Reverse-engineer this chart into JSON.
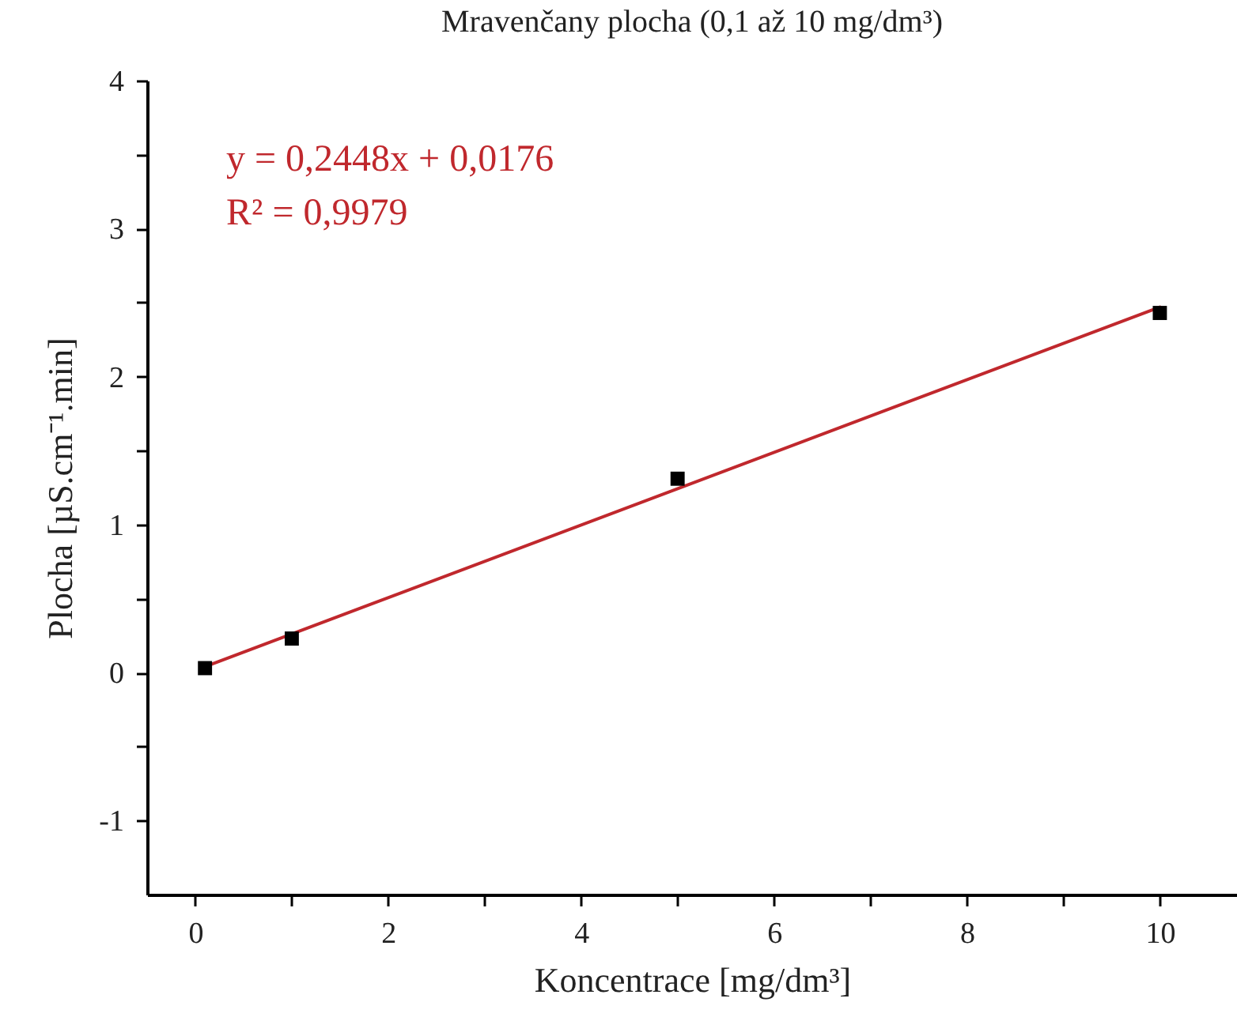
{
  "chart_data": {
    "type": "scatter",
    "title": "Mravenčany plocha (0,1 až 10 mg/dm³)",
    "xlabel": "Koncentrace [mg/dm³]",
    "ylabel": "Plocha [µS.cm⁻¹.min]",
    "annotations": [
      "y = 0,2448x + 0,0176",
      "R² = 0,9979"
    ],
    "x": [
      0.1,
      1,
      5,
      10
    ],
    "series": [
      {
        "color": "#000000",
        "marker": "square",
        "values": [
          0.03,
          0.23,
          1.31,
          2.43
        ],
        "errors": [
          0.03,
          0.03,
          0.03,
          0.03
        ]
      },
      {
        "type": "line",
        "color": "#c0282d",
        "x": [
          0.1,
          10
        ],
        "values": [
          0.04,
          2.47
        ]
      }
    ],
    "xlim": [
      -0.5,
      10.8
    ],
    "ylim": [
      -1.5,
      4
    ],
    "xticks": [
      0,
      {
        "value": 1,
        "label": null
      },
      2,
      {
        "value": 3,
        "label": null
      },
      4,
      {
        "value": 5,
        "label": null
      },
      6,
      {
        "value": 7,
        "label": null
      },
      8,
      {
        "value": 9,
        "label": null
      },
      10
    ],
    "yticks": [
      -1,
      {
        "value": -0.5,
        "label": null
      },
      0,
      {
        "value": 0.5,
        "label": null
      },
      1,
      {
        "value": 1.5,
        "label": null
      },
      2,
      {
        "value": 2.5,
        "label": null
      },
      3,
      {
        "value": 3.5,
        "label": null
      },
      4
    ],
    "grid": false
  }
}
